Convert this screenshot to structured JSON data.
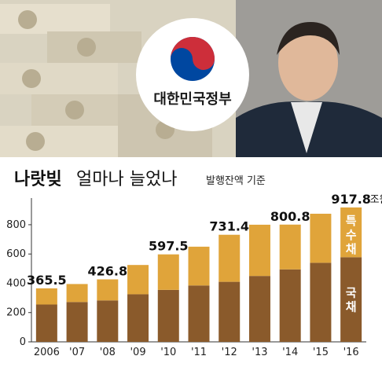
{
  "logo": {
    "text": "대한민국정부"
  },
  "colors": {
    "domestic": "#8a5a2b",
    "special": "#e0a43a",
    "axis": "#333333"
  },
  "chart_data": {
    "type": "bar",
    "title_main": "나랏빚",
    "title_rest": "얼마나 늘었나",
    "subtitle": "발행잔액 기준",
    "unit": "조원",
    "categories": [
      "2006",
      "'07",
      "'08",
      "'09",
      "'10",
      "'11",
      "'12",
      "'13",
      "'14",
      "'15",
      "'16"
    ],
    "series": [
      {
        "name": "국채",
        "values": [
          255,
          272,
          283,
          325,
          355,
          385,
          410,
          450,
          495,
          540,
          578
        ]
      },
      {
        "name": "특수채",
        "values": [
          110.5,
          123,
          143.8,
          200,
          242.5,
          265,
          321.4,
          350,
          305.8,
          335,
          339.8
        ]
      }
    ],
    "data_labels": [
      {
        "index": 0,
        "text": "365.5"
      },
      {
        "index": 2,
        "text": "426.8"
      },
      {
        "index": 4,
        "text": "597.5"
      },
      {
        "index": 6,
        "text": "731.4"
      },
      {
        "index": 8,
        "text": "800.8"
      },
      {
        "index": 10,
        "text": "917.8"
      }
    ],
    "yticks": [
      0,
      200,
      400,
      600,
      800
    ],
    "ylim": [
      0,
      950
    ],
    "grid": false,
    "segment_labels": {
      "special": "특수채",
      "domestic": "국채"
    }
  }
}
